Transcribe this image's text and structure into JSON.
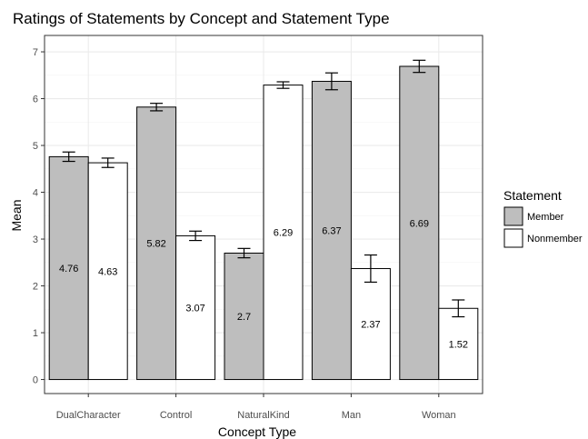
{
  "chart_data": {
    "type": "bar",
    "title": "Ratings of Statements by Concept and Statement Type",
    "xlabel": "Concept Type",
    "ylabel": "Mean",
    "ylim": [
      -0.3,
      7.35
    ],
    "yticks": [
      0,
      1,
      2,
      3,
      4,
      5,
      6,
      7
    ],
    "grid": true,
    "legend_title": "Statement",
    "legend_position": "right",
    "categories": [
      "DualCharacter",
      "Control",
      "NaturalKind",
      "Man",
      "Woman"
    ],
    "series": [
      {
        "name": "Member",
        "color": "#bebebe",
        "values": [
          4.76,
          5.82,
          2.7,
          6.37,
          6.69
        ],
        "labels": [
          "4.76",
          "5.82",
          "2.7",
          "6.37",
          "6.69"
        ],
        "error": [
          0.1,
          0.08,
          0.1,
          0.18,
          0.13
        ]
      },
      {
        "name": "Nonmember",
        "color": "#ffffff",
        "values": [
          4.63,
          3.07,
          6.29,
          2.37,
          1.52
        ],
        "labels": [
          "4.63",
          "3.07",
          "6.29",
          "2.37",
          "1.52"
        ],
        "error": [
          0.1,
          0.1,
          0.07,
          0.29,
          0.18
        ]
      }
    ]
  }
}
